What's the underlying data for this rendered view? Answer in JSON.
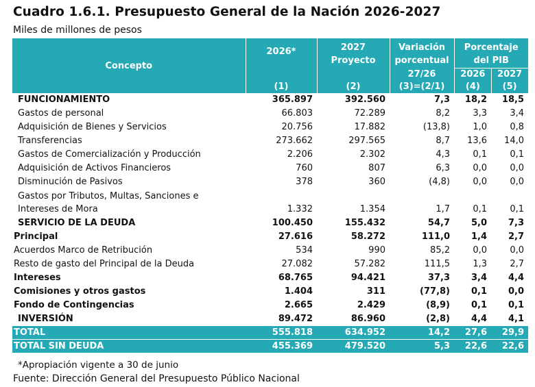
{
  "title": "Cuadro 1.6.1. Presupuesto General de la Nación 2026-2027",
  "subtitle": "Miles de millones de pesos",
  "header": {
    "concepto": "Concepto",
    "col2026": "2026*",
    "col2027_line1": "2027",
    "col2027_line2": "Proyecto",
    "variacion_line1": "Variación",
    "variacion_line2": "porcentual",
    "variacion_sub": "27/26",
    "pib_line1": "Porcentaje",
    "pib_line2": "del PIB",
    "pib_2026": "2026",
    "pib_2027": "2027",
    "idx1": "(1)",
    "idx2": "(2)",
    "idx3": "(3)=(2/1)",
    "idx4": "(4)",
    "idx5": "(5)"
  },
  "rows": [
    {
      "concepto": "FUNCIONAMIENTO",
      "v2026": "365.897",
      "v2027": "392.560",
      "var": "7,3",
      "pib2026": "18,2",
      "pib2027": "18,5"
    },
    {
      "concepto": "Gastos de personal",
      "v2026": "66.803",
      "v2027": "72.289",
      "var": "8,2",
      "pib2026": "3,3",
      "pib2027": "3,4"
    },
    {
      "concepto": "Adquisición de Bienes y Servicios",
      "v2026": "20.756",
      "v2027": "17.882",
      "var": "(13,8)",
      "pib2026": "1,0",
      "pib2027": "0,8"
    },
    {
      "concepto": "Transferencias",
      "v2026": "273.662",
      "v2027": "297.565",
      "var": "8,7",
      "pib2026": "13,6",
      "pib2027": "14,0"
    },
    {
      "concepto": "Gastos de Comercialización y Producción",
      "v2026": "2.206",
      "v2027": "2.302",
      "var": "4,3",
      "pib2026": "0,1",
      "pib2027": "0,1"
    },
    {
      "concepto": "Adquisición de Activos Financieros",
      "v2026": "760",
      "v2027": "807",
      "var": "6,3",
      "pib2026": "0,0",
      "pib2027": "0,0"
    },
    {
      "concepto": "Disminución de Pasivos",
      "v2026": "378",
      "v2027": "360",
      "var": "(4,8)",
      "pib2026": "0,0",
      "pib2027": "0,0"
    },
    {
      "concepto": "Gastos por Tributos, Multas, Sanciones e Intereses de Mora",
      "v2026": "1.332",
      "v2027": "1.354",
      "var": "1,7",
      "pib2026": "0,1",
      "pib2027": "0,1"
    },
    {
      "concepto": "SERVICIO DE LA DEUDA",
      "v2026": "100.450",
      "v2027": "155.432",
      "var": "54,7",
      "pib2026": "5,0",
      "pib2027": "7,3"
    },
    {
      "concepto": "Principal",
      "v2026": "27.616",
      "v2027": "58.272",
      "var": "111,0",
      "pib2026": "1,4",
      "pib2027": "2,7"
    },
    {
      "concepto": "Acuerdos Marco de Retribución",
      "v2026": "534",
      "v2027": "990",
      "var": "85,2",
      "pib2026": "0,0",
      "pib2027": "0,0"
    },
    {
      "concepto": "Resto de gasto del Principal de la Deuda",
      "v2026": "27.082",
      "v2027": "57.282",
      "var": "111,5",
      "pib2026": "1,3",
      "pib2027": "2,7"
    },
    {
      "concepto": "Intereses",
      "v2026": "68.765",
      "v2027": "94.421",
      "var": "37,3",
      "pib2026": "3,4",
      "pib2027": "4,4"
    },
    {
      "concepto": "Comisiones y otros gastos",
      "v2026": "1.404",
      "v2027": "311",
      "var": "(77,8)",
      "pib2026": "0,1",
      "pib2027": "0,0"
    },
    {
      "concepto": "Fondo de Contingencias",
      "v2026": "2.665",
      "v2027": "2.429",
      "var": "(8,9)",
      "pib2026": "0,1",
      "pib2027": "0,1"
    },
    {
      "concepto": "INVERSIÓN",
      "v2026": "89.472",
      "v2027": "86.960",
      "var": "(2,8)",
      "pib2026": "4,4",
      "pib2027": "4,1"
    },
    {
      "concepto": "TOTAL",
      "v2026": "555.818",
      "v2027": "634.952",
      "var": "14,2",
      "pib2026": "27,6",
      "pib2027": "29,9"
    },
    {
      "concepto": "TOTAL SIN DEUDA",
      "v2026": "455.369",
      "v2027": "479.520",
      "var": "5,3",
      "pib2026": "22,6",
      "pib2027": "22,6"
    }
  ],
  "footnote": "*Apropiación vigente a 30 de junio",
  "source": "Fuente: Dirección General del Presupuesto Público Nacional",
  "colors": {
    "header_bg": "#25a9b5",
    "header_text": "#ffffff"
  }
}
